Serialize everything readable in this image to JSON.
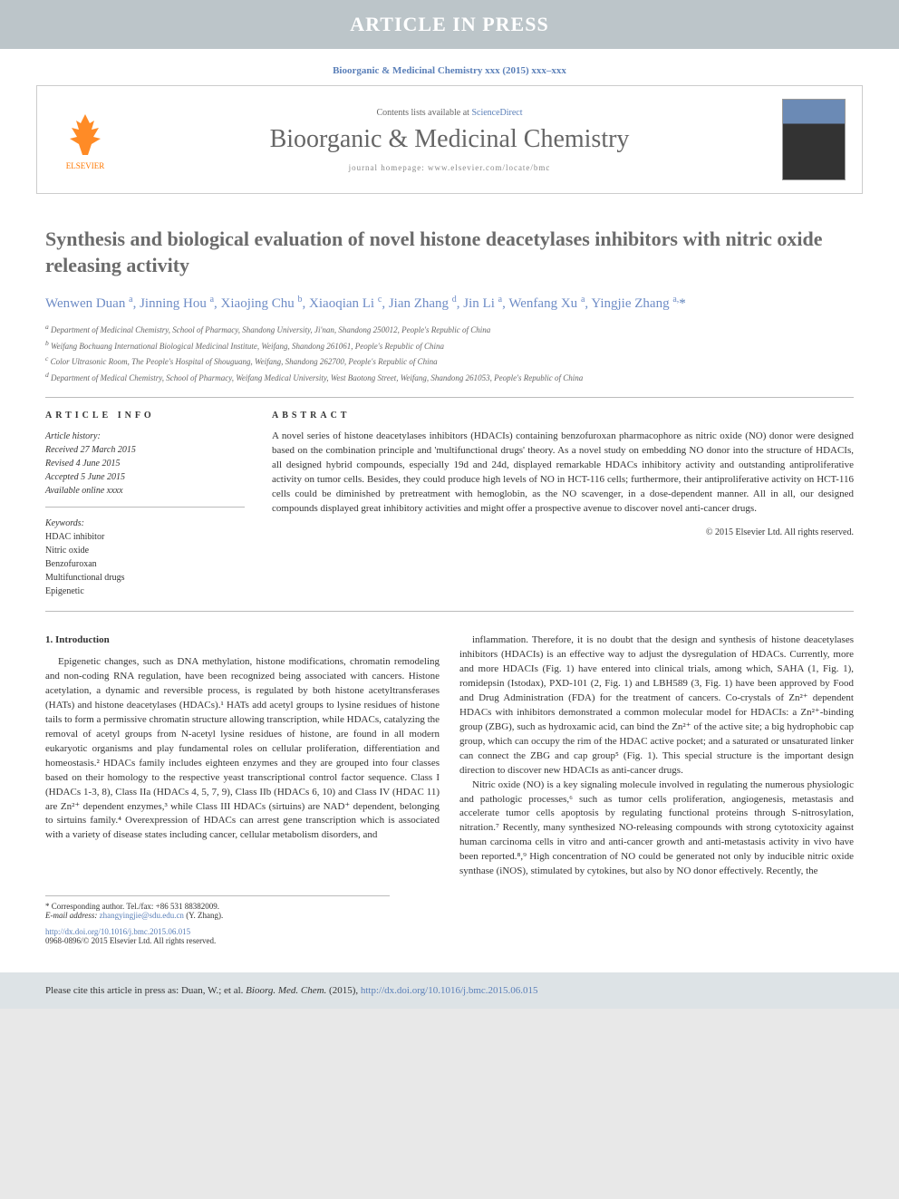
{
  "banner": {
    "text": "ARTICLE IN PRESS"
  },
  "citation_top": "Bioorganic & Medicinal Chemistry xxx (2015) xxx–xxx",
  "header": {
    "contents_prefix": "Contents lists available at ",
    "contents_link": "ScienceDirect",
    "journal_name": "Bioorganic & Medicinal Chemistry",
    "homepage_prefix": "journal homepage: ",
    "homepage_url": "www.elsevier.com/locate/bmc",
    "elsevier_label": "ELSEVIER"
  },
  "title": "Synthesis and biological evaluation of novel histone deacetylases inhibitors with nitric oxide releasing activity",
  "authors_html": "Wenwen Duan <sup>a</sup>, Jinning Hou <sup>a</sup>, Xiaojing Chu <sup>b</sup>, Xiaoqian Li <sup>c</sup>, Jian Zhang <sup>d</sup>, Jin Li <sup>a</sup>, Wenfang Xu <sup>a</sup>, Yingjie Zhang <sup>a,</sup><span class='asterisk'>*</span>",
  "affiliations": [
    "a Department of Medicinal Chemistry, School of Pharmacy, Shandong University, Ji'nan, Shandong 250012, People's Republic of China",
    "b Weifang Bochuang International Biological Medicinal Institute, Weifang, Shandong 261061, People's Republic of China",
    "c Color Ultrasonic Room, The People's Hospital of Shouguang, Weifang, Shandong 262700, People's Republic of China",
    "d Department of Medical Chemistry, School of Pharmacy, Weifang Medical University, West Baotong Street, Weifang, Shandong 261053, People's Republic of China"
  ],
  "article_info": {
    "label": "ARTICLE INFO",
    "history_label": "Article history:",
    "received": "Received 27 March 2015",
    "revised": "Revised 4 June 2015",
    "accepted": "Accepted 5 June 2015",
    "available": "Available online xxxx",
    "keywords_label": "Keywords:",
    "keywords": [
      "HDAC inhibitor",
      "Nitric oxide",
      "Benzofuroxan",
      "Multifunctional drugs",
      "Epigenetic"
    ]
  },
  "abstract": {
    "label": "ABSTRACT",
    "text": "A novel series of histone deacetylases inhibitors (HDACIs) containing benzofuroxan pharmacophore as nitric oxide (NO) donor were designed based on the combination principle and 'multifunctional drugs' theory. As a novel study on embedding NO donor into the structure of HDACIs, all designed hybrid compounds, especially 19d and 24d, displayed remarkable HDACs inhibitory activity and outstanding antiproliferative activity on tumor cells. Besides, they could produce high levels of NO in HCT-116 cells; furthermore, their antiproliferative activity on HCT-116 cells could be diminished by pretreatment with hemoglobin, as the NO scavenger, in a dose-dependent manner. All in all, our designed compounds displayed great inhibitory activities and might offer a prospective avenue to discover novel anti-cancer drugs.",
    "copyright": "© 2015 Elsevier Ltd. All rights reserved."
  },
  "body": {
    "section_heading": "1. Introduction",
    "col1_p1": "Epigenetic changes, such as DNA methylation, histone modifications, chromatin remodeling and non-coding RNA regulation, have been recognized being associated with cancers. Histone acetylation, a dynamic and reversible process, is regulated by both histone acetyltransferases (HATs) and histone deacetylases (HDACs).¹ HATs add acetyl groups to lysine residues of histone tails to form a permissive chromatin structure allowing transcription, while HDACs, catalyzing the removal of acetyl groups from N-acetyl lysine residues of histone, are found in all modern eukaryotic organisms and play fundamental roles on cellular proliferation, differentiation and homeostasis.² HDACs family includes eighteen enzymes and they are grouped into four classes based on their homology to the respective yeast transcriptional control factor sequence. Class I (HDACs 1-3, 8), Class IIa (HDACs 4, 5, 7, 9), Class IIb (HDACs 6, 10) and Class IV (HDAC 11) are Zn²⁺ dependent enzymes,³ while Class III HDACs (sirtuins) are NAD⁺ dependent, belonging to sirtuins family.⁴ Overexpression of HDACs can arrest gene transcription which is associated with a variety of disease states including cancer, cellular metabolism disorders, and",
    "col2_p1": "inflammation. Therefore, it is no doubt that the design and synthesis of histone deacetylases inhibitors (HDACIs) is an effective way to adjust the dysregulation of HDACs. Currently, more and more HDACIs (Fig. 1) have entered into clinical trials, among which, SAHA (1, Fig. 1), romidepsin (Istodax), PXD-101 (2, Fig. 1) and LBH589 (3, Fig. 1) have been approved by Food and Drug Administration (FDA) for the treatment of cancers. Co-crystals of Zn²⁺ dependent HDACs with inhibitors demonstrated a common molecular model for HDACIs: a Zn²⁺-binding group (ZBG), such as hydroxamic acid, can bind the Zn²⁺ of the active site; a big hydrophobic cap group, which can occupy the rim of the HDAC active pocket; and a saturated or unsaturated linker can connect the ZBG and cap group⁵ (Fig. 1). This special structure is the important design direction to discover new HDACIs as anti-cancer drugs.",
    "col2_p2": "Nitric oxide (NO) is a key signaling molecule involved in regulating the numerous physiologic and pathologic processes,⁶ such as tumor cells proliferation, angiogenesis, metastasis and accelerate tumor cells apoptosis by regulating functional proteins through S-nitrosylation, nitration.⁷ Recently, many synthesized NO-releasing compounds with strong cytotoxicity against human carcinoma cells in vitro and anti-cancer growth and anti-metastasis activity in vivo have been reported.⁸,⁹ High concentration of NO could be generated not only by inducible nitric oxide synthase (iNOS), stimulated by cytokines, but also by NO donor effectively. Recently, the"
  },
  "corresponding": {
    "line1": "* Corresponding author. Tel./fax: +86 531 88382009.",
    "email_label": "E-mail address: ",
    "email": "zhangyingjie@sdu.edu.cn",
    "email_suffix": " (Y. Zhang)."
  },
  "doi": {
    "url": "http://dx.doi.org/10.1016/j.bmc.2015.06.015",
    "rights": "0968-0896/© 2015 Elsevier Ltd. All rights reserved."
  },
  "footer_cite": {
    "prefix": "Please cite this article in press as: Duan, W.; et al. ",
    "journal": "Bioorg. Med. Chem.",
    "year": " (2015), ",
    "url": "http://dx.doi.org/10.1016/j.bmc.2015.06.015"
  },
  "colors": {
    "link": "#5a7fb8",
    "banner_bg": "#bcc5c9",
    "title_gray": "#6b6b6b",
    "footer_bg": "#dde3e6"
  }
}
